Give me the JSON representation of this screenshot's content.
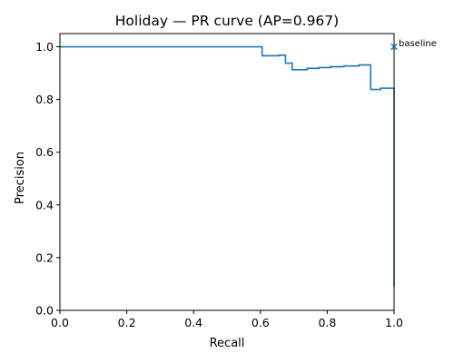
{
  "chart_data": {
    "type": "line",
    "title": "Holiday — PR curve (AP=0.967)",
    "xlabel": "Recall",
    "ylabel": "Precision",
    "xlim": [
      0.0,
      1.0
    ],
    "ylim": [
      0.0,
      1.05
    ],
    "x_ticks": [
      0.0,
      0.2,
      0.4,
      0.6,
      0.8,
      1.0
    ],
    "x_tick_labels": [
      "0.0",
      "0.2",
      "0.4",
      "0.6",
      "0.8",
      "1.0"
    ],
    "y_ticks": [
      0.0,
      0.2,
      0.4,
      0.6,
      0.8,
      1.0
    ],
    "y_tick_labels": [
      "0.0",
      "0.2",
      "0.4",
      "0.6",
      "0.8",
      "1.0"
    ],
    "grid": false,
    "line_color": "#1f77b4",
    "series": [
      {
        "step": "post",
        "points": [
          [
            0.0,
            1.0
          ],
          [
            0.605,
            1.0
          ],
          [
            0.605,
            0.966
          ],
          [
            0.655,
            0.966
          ],
          [
            0.655,
            0.968
          ],
          [
            0.675,
            0.968
          ],
          [
            0.675,
            0.938
          ],
          [
            0.695,
            0.938
          ],
          [
            0.695,
            0.913
          ],
          [
            0.74,
            0.913
          ],
          [
            0.74,
            0.918
          ],
          [
            0.775,
            0.918
          ],
          [
            0.775,
            0.921
          ],
          [
            0.81,
            0.921
          ],
          [
            0.81,
            0.924
          ],
          [
            0.85,
            0.924
          ],
          [
            0.85,
            0.927
          ],
          [
            0.895,
            0.927
          ],
          [
            0.895,
            0.931
          ],
          [
            0.93,
            0.931
          ],
          [
            0.93,
            0.838
          ],
          [
            0.96,
            0.838
          ],
          [
            0.96,
            0.843
          ],
          [
            1.0,
            0.843
          ],
          [
            1.0,
            0.09
          ]
        ]
      }
    ],
    "annotation": {
      "text": "baseline",
      "marker": "x",
      "x": 1.0,
      "y": 1.0
    }
  }
}
